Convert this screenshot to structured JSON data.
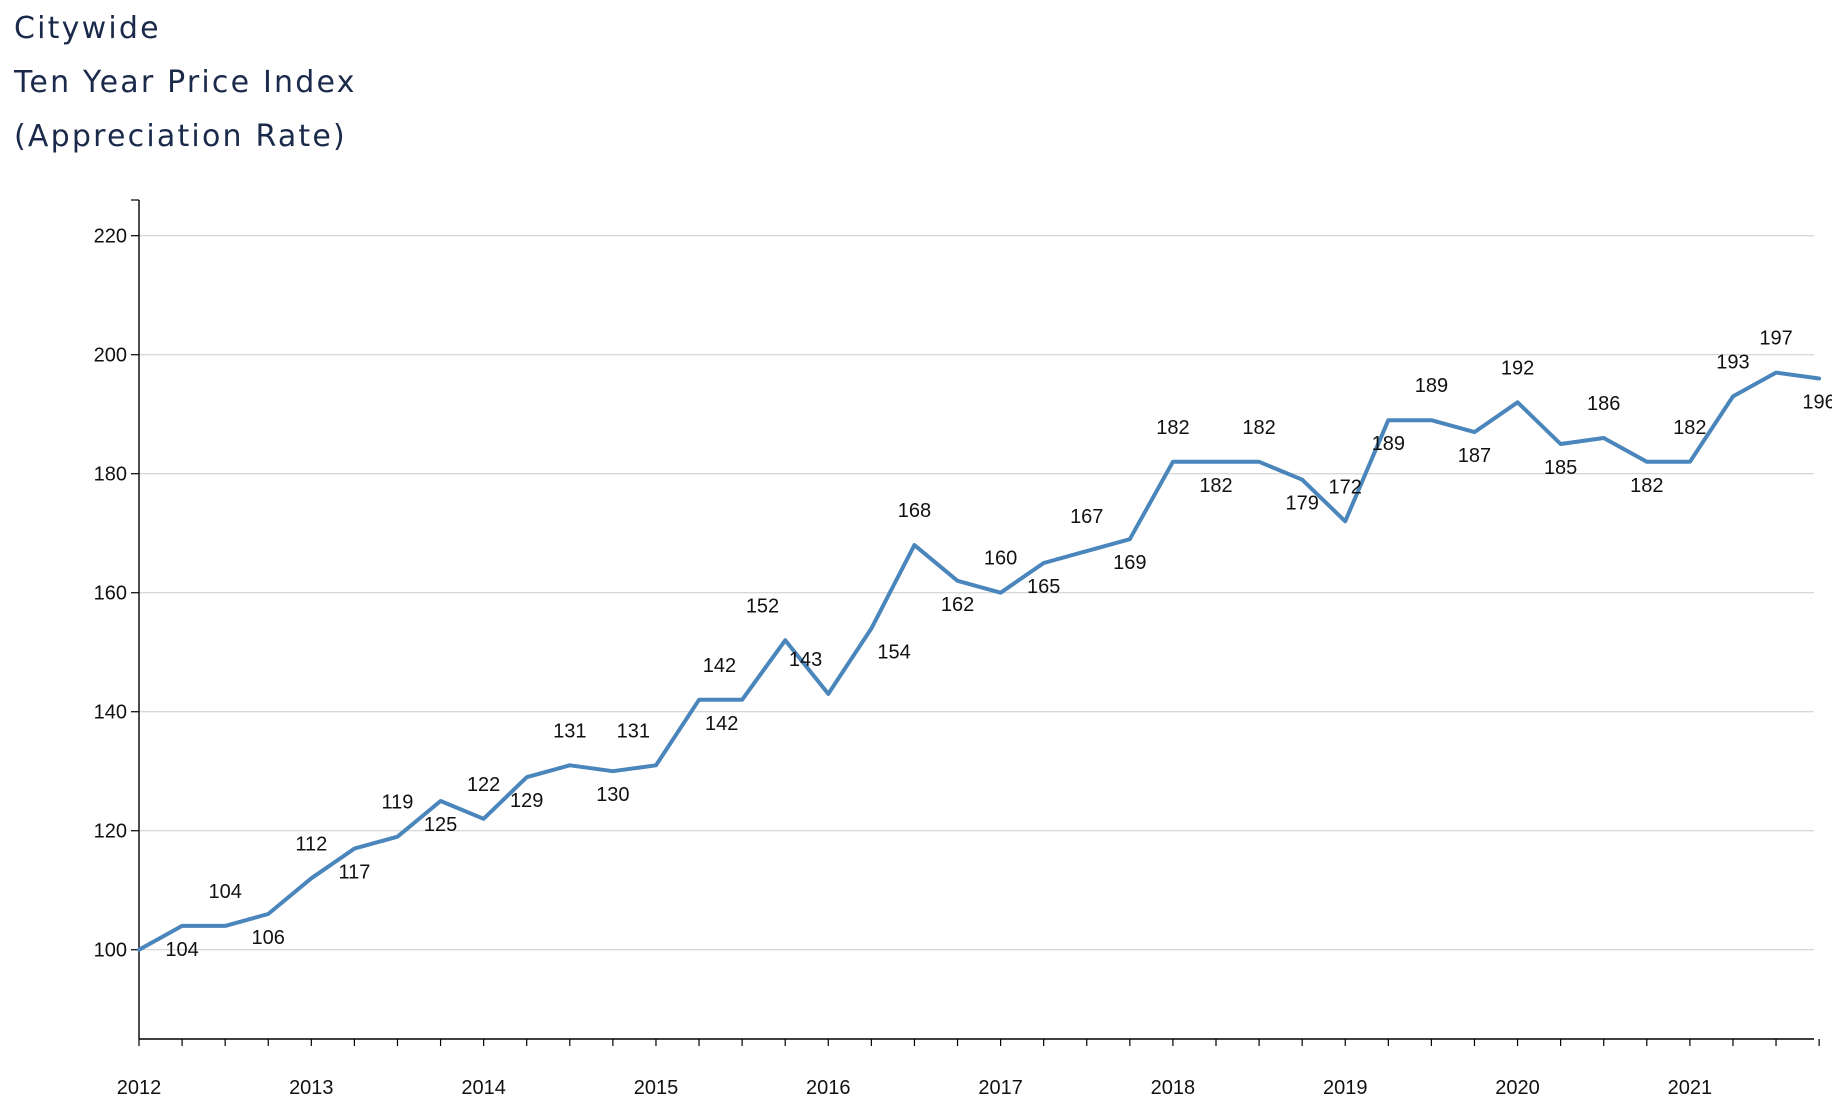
{
  "titles": [
    "Citywide",
    "Ten Year Price Index",
    "(Appreciation Rate)"
  ],
  "colors": {
    "line": "#4a86bb",
    "grid": "#cccccc",
    "axis": "#000000",
    "title": "#1b2a4a"
  },
  "chart_data": {
    "type": "line",
    "title": "Citywide Ten Year Price Index (Appreciation Rate)",
    "xlabel": "",
    "ylabel": "",
    "ylim": [
      85,
      226
    ],
    "yticks": [
      100,
      120,
      140,
      160,
      180,
      200,
      220
    ],
    "grid": true,
    "legend": "none",
    "year_labels": [
      "2012",
      "2013",
      "2014",
      "2015",
      "2016",
      "2017",
      "2018",
      "2019",
      "2020",
      "2021"
    ],
    "x_start": "2012 Q1",
    "x_interval": "quarter",
    "series": [
      {
        "values": [
          100,
          104,
          104,
          106,
          112,
          117,
          119,
          125,
          122,
          129,
          131,
          130,
          131,
          142,
          142,
          152,
          143,
          154,
          168,
          162,
          160,
          165,
          167,
          169,
          182,
          182,
          182,
          179,
          172,
          189,
          189,
          187,
          192,
          185,
          186,
          182,
          182,
          193,
          197,
          196
        ],
        "labels": [
          "",
          "104",
          "104",
          "106",
          "112",
          "117",
          "119",
          "125",
          "122",
          "129",
          "131",
          "130",
          "131",
          "142",
          "142",
          "152",
          "143",
          "154",
          "168",
          "162",
          "160",
          "165",
          "167",
          "169",
          "182",
          "182",
          "182",
          "179",
          "172",
          "189",
          "189",
          "187",
          "192",
          "185",
          "186",
          "182",
          "182",
          "193",
          "197",
          "196"
        ],
        "label_side": [
          "none",
          "below",
          "above",
          "below",
          "above",
          "below",
          "above",
          "below",
          "above",
          "below",
          "above",
          "below",
          "left",
          "right",
          "left",
          "left",
          "left",
          "right",
          "above",
          "below",
          "above",
          "below",
          "above",
          "below",
          "above",
          "below",
          "above",
          "below",
          "above",
          "below",
          "above",
          "below",
          "above",
          "below",
          "above",
          "below",
          "above",
          "above",
          "above",
          "below"
        ]
      }
    ]
  }
}
